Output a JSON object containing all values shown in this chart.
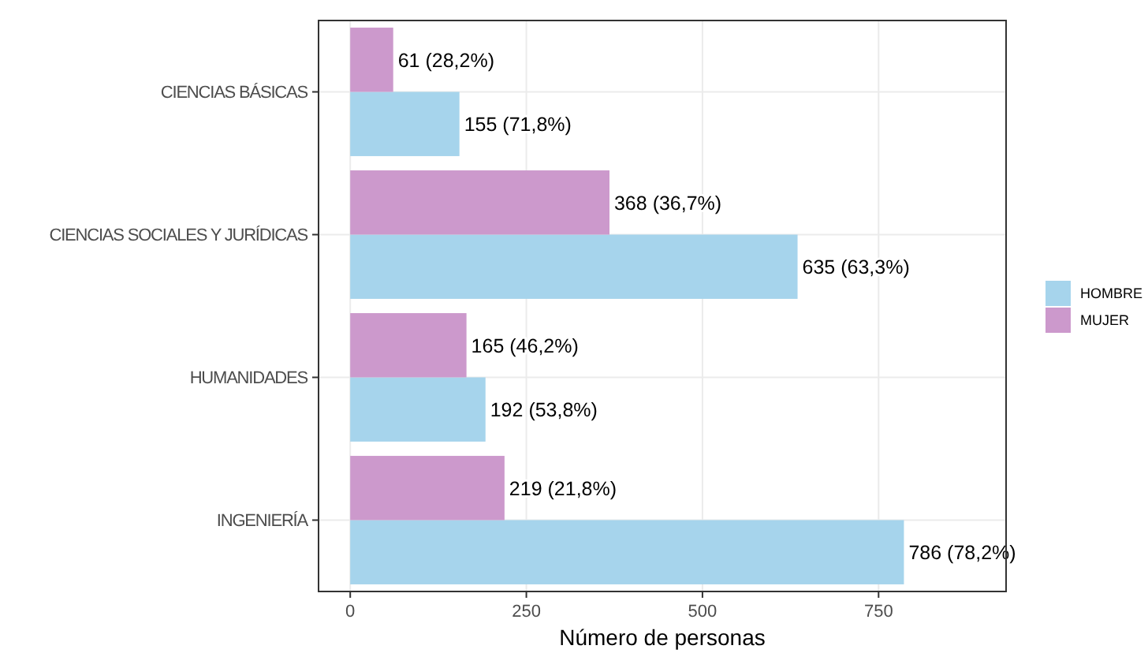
{
  "chart_data": {
    "type": "bar",
    "orientation": "horizontal",
    "xlabel": "Número de personas",
    "categories": [
      "CIENCIAS BÁSICAS",
      "CIENCIAS SOCIALES Y JURÍDICAS",
      "HUMANIDADES",
      "INGENIERÍA"
    ],
    "series": [
      {
        "name": "HOMBRE",
        "color": "#a6d4ec",
        "values": [
          155,
          635,
          192,
          786
        ],
        "value_labels": [
          "155 (71,8%)",
          "635 (63,3%)",
          "192 (53,8%)",
          "786 (78,2%)"
        ]
      },
      {
        "name": "MUJER",
        "color": "#cc99cc",
        "values": [
          61,
          368,
          165,
          219
        ],
        "value_labels": [
          "61 (28,2%)",
          "368 (36,7%)",
          "165 (46,2%)",
          "219 (21,8%)"
        ]
      }
    ],
    "xlim": [
      -45,
      931
    ],
    "xticks": [
      0,
      250,
      500,
      750
    ],
    "grid": true,
    "legend": "right"
  }
}
